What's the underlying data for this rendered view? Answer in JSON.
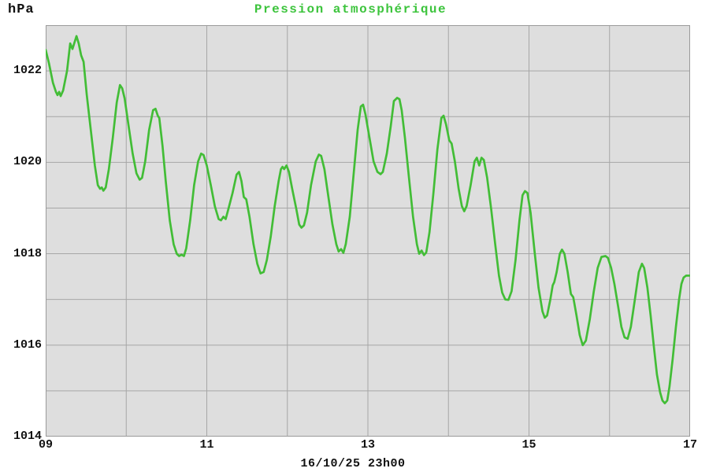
{
  "header": {
    "unit_label": "hPa",
    "title": "Pression atmosphérique"
  },
  "footer": {
    "date_label": "16/10/25 23h00"
  },
  "colors": {
    "title_green": "#3dc43d",
    "line_green": "#42bd36",
    "plot_bg_light": "#dedede",
    "band_dark": "#b8b8b8",
    "gridline": "#a6a6a6",
    "border": "#9a9a9a",
    "text": "#111111"
  },
  "chart_data": {
    "type": "line",
    "title": "Pression atmosphérique",
    "ylabel": "hPa",
    "xlabel": "16/10/25 23h00",
    "xlim": [
      9,
      17
    ],
    "ylim": [
      1014,
      1023
    ],
    "grid": {
      "x_step": 1,
      "y_step": 1,
      "on": true
    },
    "legend": "none",
    "x_ticks": [
      {
        "value": 9,
        "label": "09"
      },
      {
        "value": 11,
        "label": "11"
      },
      {
        "value": 13,
        "label": "13"
      },
      {
        "value": 15,
        "label": "15"
      },
      {
        "value": 17,
        "label": "17"
      }
    ],
    "y_ticks": [
      {
        "value": 1022,
        "label": "1022"
      },
      {
        "value": 1020,
        "label": "1020"
      },
      {
        "value": 1018,
        "label": "1018"
      },
      {
        "value": 1016,
        "label": "1016"
      },
      {
        "value": 1014,
        "label": "1014"
      }
    ],
    "hour_bands": {
      "center_every_hours": 1,
      "width_hours": 0.47
    },
    "series": [
      {
        "name": "Pression atmosphérique (hPa)",
        "points": [
          [
            9.0,
            1022.46
          ],
          [
            9.04,
            1022.17
          ],
          [
            9.09,
            1021.74
          ],
          [
            9.127,
            1021.54
          ],
          [
            9.147,
            1021.47
          ],
          [
            9.167,
            1021.54
          ],
          [
            9.186,
            1021.45
          ],
          [
            9.216,
            1021.57
          ],
          [
            9.265,
            1022.0
          ],
          [
            9.304,
            1022.6
          ],
          [
            9.333,
            1022.48
          ],
          [
            9.382,
            1022.76
          ],
          [
            9.41,
            1022.6
          ],
          [
            9.44,
            1022.34
          ],
          [
            9.47,
            1022.2
          ],
          [
            9.51,
            1021.48
          ],
          [
            9.56,
            1020.7
          ],
          [
            9.61,
            1019.93
          ],
          [
            9.647,
            1019.5
          ],
          [
            9.676,
            1019.42
          ],
          [
            9.696,
            1019.45
          ],
          [
            9.716,
            1019.38
          ],
          [
            9.745,
            1019.45
          ],
          [
            9.784,
            1019.85
          ],
          [
            9.833,
            1020.54
          ],
          [
            9.882,
            1021.31
          ],
          [
            9.922,
            1021.69
          ],
          [
            9.95,
            1021.62
          ],
          [
            9.98,
            1021.4
          ],
          [
            10.03,
            1020.79
          ],
          [
            10.08,
            1020.19
          ],
          [
            10.127,
            1019.76
          ],
          [
            10.167,
            1019.62
          ],
          [
            10.196,
            1019.66
          ],
          [
            10.235,
            1020.02
          ],
          [
            10.284,
            1020.71
          ],
          [
            10.333,
            1021.14
          ],
          [
            10.363,
            1021.17
          ],
          [
            10.392,
            1021.02
          ],
          [
            10.41,
            1020.97
          ],
          [
            10.45,
            1020.36
          ],
          [
            10.49,
            1019.59
          ],
          [
            10.54,
            1018.73
          ],
          [
            10.588,
            1018.21
          ],
          [
            10.627,
            1018.0
          ],
          [
            10.657,
            1017.95
          ],
          [
            10.686,
            1017.98
          ],
          [
            10.716,
            1017.95
          ],
          [
            10.745,
            1018.12
          ],
          [
            10.794,
            1018.73
          ],
          [
            10.843,
            1019.5
          ],
          [
            10.892,
            1020.02
          ],
          [
            10.93,
            1020.19
          ],
          [
            10.96,
            1020.16
          ],
          [
            11.0,
            1019.93
          ],
          [
            11.05,
            1019.5
          ],
          [
            11.1,
            1019.04
          ],
          [
            11.147,
            1018.76
          ],
          [
            11.176,
            1018.73
          ],
          [
            11.206,
            1018.81
          ],
          [
            11.235,
            1018.76
          ],
          [
            11.27,
            1018.99
          ],
          [
            11.32,
            1019.33
          ],
          [
            11.37,
            1019.73
          ],
          [
            11.4,
            1019.79
          ],
          [
            11.43,
            1019.59
          ],
          [
            11.46,
            1019.24
          ],
          [
            11.49,
            1019.19
          ],
          [
            11.53,
            1018.81
          ],
          [
            11.58,
            1018.21
          ],
          [
            11.627,
            1017.78
          ],
          [
            11.667,
            1017.57
          ],
          [
            11.706,
            1017.6
          ],
          [
            11.745,
            1017.86
          ],
          [
            11.794,
            1018.38
          ],
          [
            11.843,
            1019.04
          ],
          [
            11.892,
            1019.59
          ],
          [
            11.92,
            1019.85
          ],
          [
            11.94,
            1019.9
          ],
          [
            11.96,
            1019.85
          ],
          [
            11.99,
            1019.93
          ],
          [
            12.02,
            1019.79
          ],
          [
            12.06,
            1019.42
          ],
          [
            12.11,
            1018.99
          ],
          [
            12.147,
            1018.64
          ],
          [
            12.176,
            1018.57
          ],
          [
            12.206,
            1018.62
          ],
          [
            12.245,
            1018.9
          ],
          [
            12.294,
            1019.5
          ],
          [
            12.353,
            1020.02
          ],
          [
            12.392,
            1020.17
          ],
          [
            12.42,
            1020.14
          ],
          [
            12.46,
            1019.85
          ],
          [
            12.51,
            1019.24
          ],
          [
            12.56,
            1018.64
          ],
          [
            12.608,
            1018.21
          ],
          [
            12.637,
            1018.05
          ],
          [
            12.667,
            1018.1
          ],
          [
            12.696,
            1018.02
          ],
          [
            12.725,
            1018.21
          ],
          [
            12.775,
            1018.81
          ],
          [
            12.824,
            1019.76
          ],
          [
            12.873,
            1020.71
          ],
          [
            12.912,
            1021.22
          ],
          [
            12.94,
            1021.26
          ],
          [
            12.97,
            1021.05
          ],
          [
            13.02,
            1020.54
          ],
          [
            13.07,
            1020.02
          ],
          [
            13.118,
            1019.79
          ],
          [
            13.157,
            1019.74
          ],
          [
            13.186,
            1019.79
          ],
          [
            13.235,
            1020.19
          ],
          [
            13.284,
            1020.79
          ],
          [
            13.323,
            1021.34
          ],
          [
            13.363,
            1021.41
          ],
          [
            13.392,
            1021.38
          ],
          [
            13.42,
            1021.14
          ],
          [
            13.46,
            1020.54
          ],
          [
            13.51,
            1019.67
          ],
          [
            13.56,
            1018.81
          ],
          [
            13.608,
            1018.21
          ],
          [
            13.637,
            1018.0
          ],
          [
            13.667,
            1018.07
          ],
          [
            13.696,
            1017.97
          ],
          [
            13.725,
            1018.03
          ],
          [
            13.765,
            1018.47
          ],
          [
            13.814,
            1019.33
          ],
          [
            13.863,
            1020.28
          ],
          [
            13.912,
            1020.97
          ],
          [
            13.94,
            1021.02
          ],
          [
            13.97,
            1020.83
          ],
          [
            14.01,
            1020.48
          ],
          [
            14.04,
            1020.41
          ],
          [
            14.08,
            1020.02
          ],
          [
            14.127,
            1019.42
          ],
          [
            14.167,
            1019.04
          ],
          [
            14.196,
            1018.93
          ],
          [
            14.225,
            1019.04
          ],
          [
            14.275,
            1019.5
          ],
          [
            14.324,
            1020.02
          ],
          [
            14.353,
            1020.1
          ],
          [
            14.382,
            1019.93
          ],
          [
            14.41,
            1020.1
          ],
          [
            14.44,
            1020.05
          ],
          [
            14.48,
            1019.67
          ],
          [
            14.53,
            1018.99
          ],
          [
            14.58,
            1018.21
          ],
          [
            14.627,
            1017.52
          ],
          [
            14.667,
            1017.15
          ],
          [
            14.706,
            1017.0
          ],
          [
            14.745,
            1016.99
          ],
          [
            14.784,
            1017.18
          ],
          [
            14.833,
            1017.86
          ],
          [
            14.882,
            1018.73
          ],
          [
            14.92,
            1019.28
          ],
          [
            14.95,
            1019.37
          ],
          [
            14.98,
            1019.33
          ],
          [
            15.02,
            1018.9
          ],
          [
            15.07,
            1018.03
          ],
          [
            15.118,
            1017.26
          ],
          [
            15.167,
            1016.74
          ],
          [
            15.196,
            1016.6
          ],
          [
            15.225,
            1016.65
          ],
          [
            15.265,
            1017.0
          ],
          [
            15.294,
            1017.31
          ],
          [
            15.314,
            1017.38
          ],
          [
            15.343,
            1017.6
          ],
          [
            15.382,
            1018.0
          ],
          [
            15.41,
            1018.09
          ],
          [
            15.44,
            1018.0
          ],
          [
            15.48,
            1017.6
          ],
          [
            15.52,
            1017.12
          ],
          [
            15.55,
            1017.05
          ],
          [
            15.59,
            1016.65
          ],
          [
            15.63,
            1016.22
          ],
          [
            15.667,
            1016.0
          ],
          [
            15.706,
            1016.1
          ],
          [
            15.755,
            1016.57
          ],
          [
            15.804,
            1017.17
          ],
          [
            15.853,
            1017.69
          ],
          [
            15.9,
            1017.93
          ],
          [
            15.95,
            1017.95
          ],
          [
            15.98,
            1017.91
          ],
          [
            16.02,
            1017.69
          ],
          [
            16.06,
            1017.34
          ],
          [
            16.108,
            1016.83
          ],
          [
            16.147,
            1016.4
          ],
          [
            16.186,
            1016.17
          ],
          [
            16.225,
            1016.14
          ],
          [
            16.265,
            1016.4
          ],
          [
            16.314,
            1017.0
          ],
          [
            16.363,
            1017.6
          ],
          [
            16.402,
            1017.78
          ],
          [
            16.43,
            1017.69
          ],
          [
            16.47,
            1017.26
          ],
          [
            16.51,
            1016.65
          ],
          [
            16.55,
            1015.97
          ],
          [
            16.588,
            1015.36
          ],
          [
            16.627,
            1014.97
          ],
          [
            16.657,
            1014.79
          ],
          [
            16.686,
            1014.73
          ],
          [
            16.716,
            1014.79
          ],
          [
            16.745,
            1015.1
          ],
          [
            16.784,
            1015.7
          ],
          [
            16.824,
            1016.4
          ],
          [
            16.863,
            1017.0
          ],
          [
            16.892,
            1017.34
          ],
          [
            16.92,
            1017.48
          ],
          [
            16.95,
            1017.52
          ],
          [
            17.0,
            1017.52
          ]
        ]
      }
    ]
  }
}
